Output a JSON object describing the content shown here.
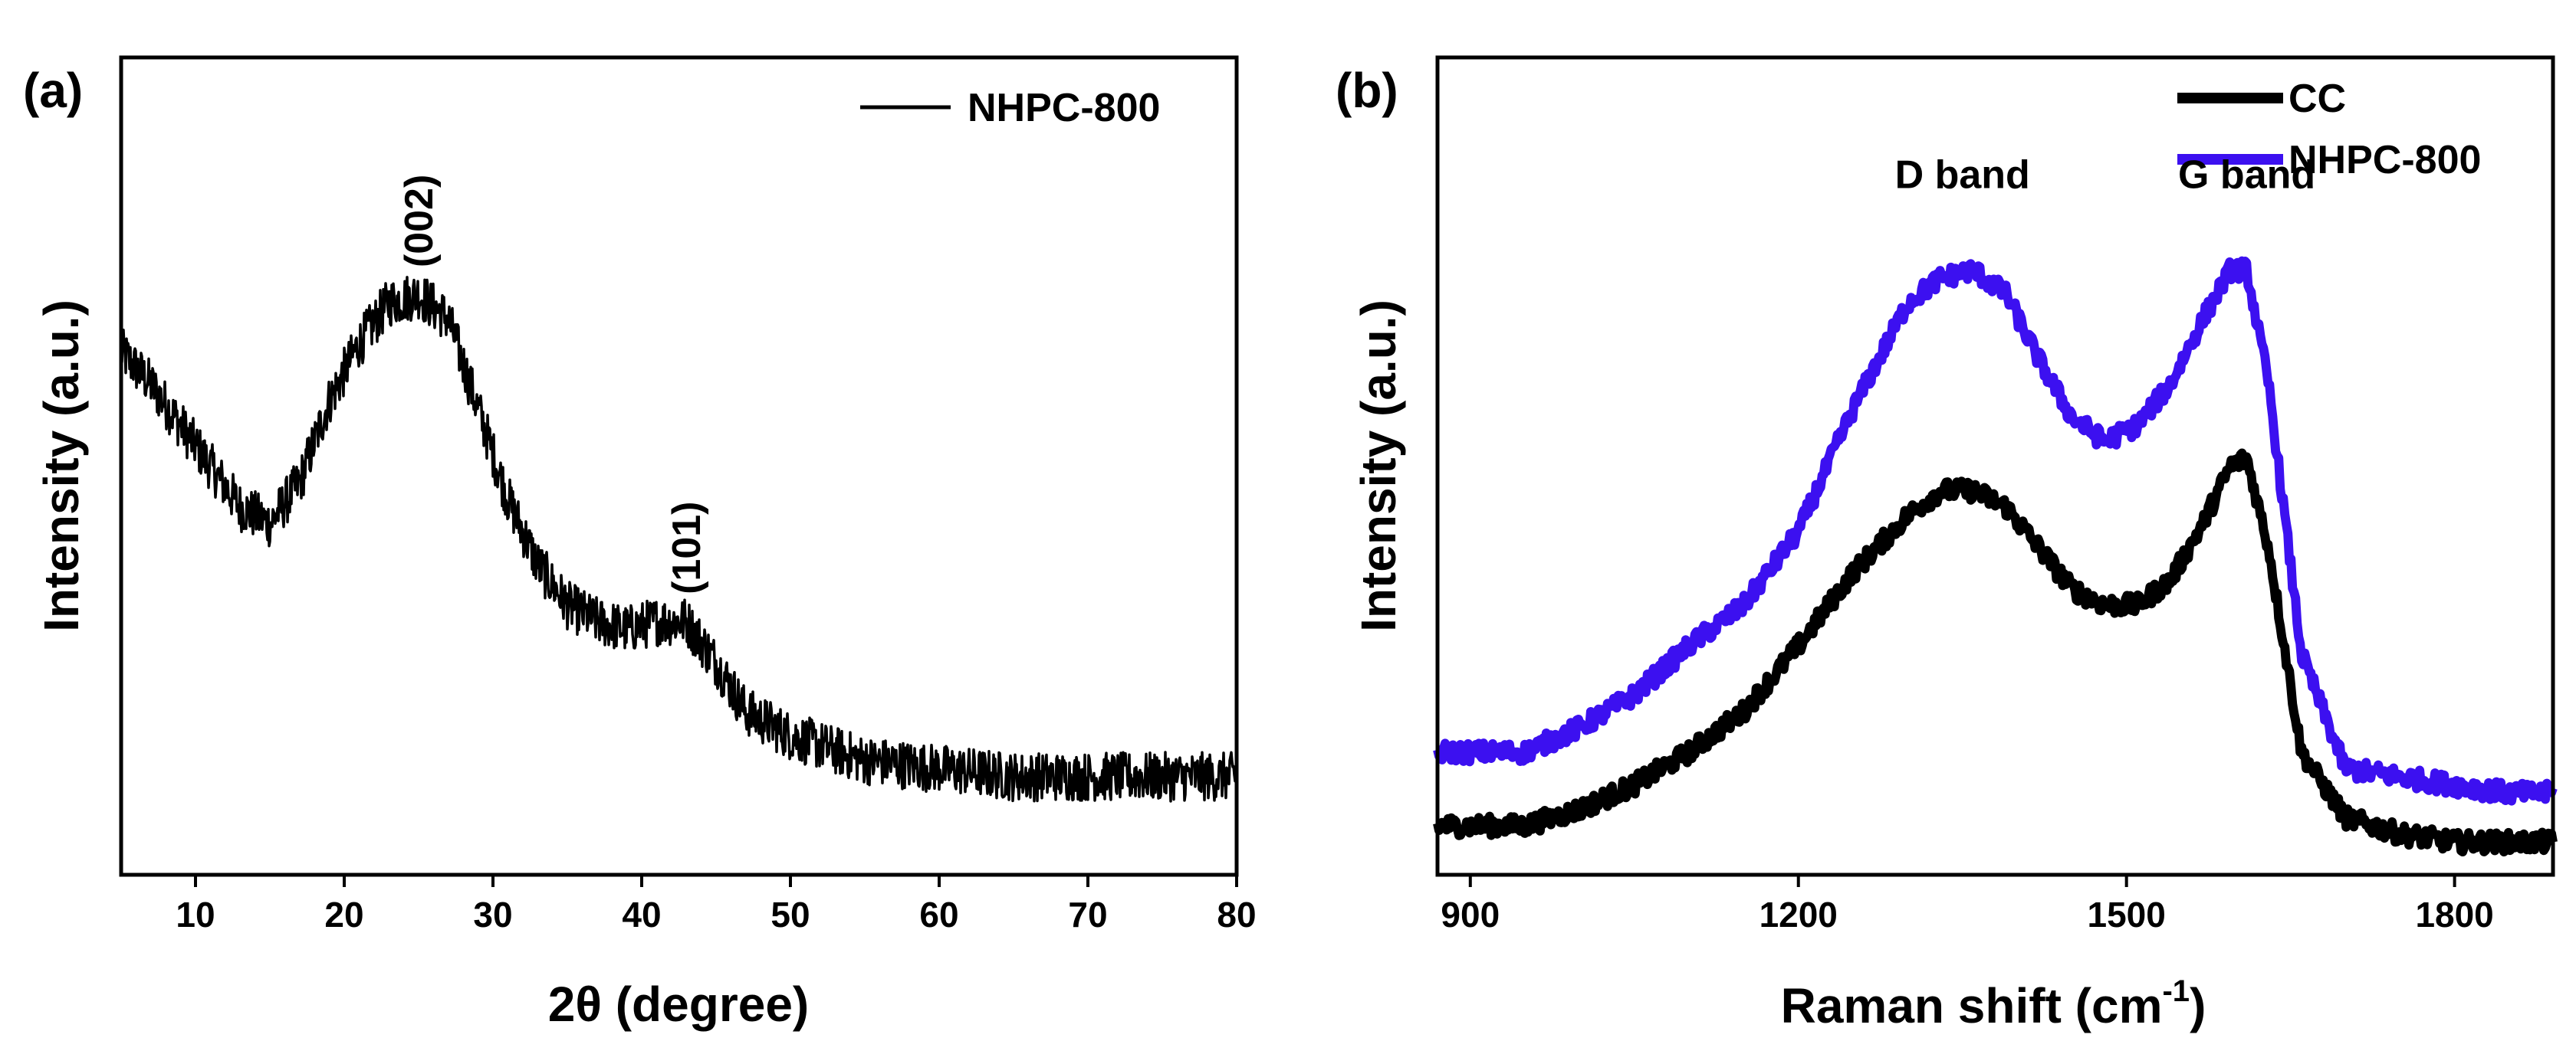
{
  "chart_data": [
    {
      "type": "line",
      "panel_label": "(a)",
      "xlabel": "2θ (degree)",
      "ylabel": "Intensity (a.u.)",
      "xlim": [
        5,
        80
      ],
      "ylim": [
        0,
        1
      ],
      "xticks": [
        10,
        20,
        30,
        40,
        50,
        60,
        70,
        80
      ],
      "tick_labels": [
        "10",
        "20",
        "30",
        "40",
        "50",
        "60",
        "70",
        "80"
      ],
      "legend_position": "top-right",
      "series": [
        {
          "name": "NHPC-800",
          "color": "#000000",
          "x": [
            5,
            7,
            9,
            11,
            13,
            15,
            17,
            19,
            21,
            23,
            25,
            27,
            29,
            31,
            33,
            35,
            37,
            39,
            41,
            43,
            45,
            47,
            50,
            55,
            60,
            65,
            70,
            75,
            80
          ],
          "y": [
            0.64,
            0.6,
            0.55,
            0.5,
            0.45,
            0.43,
            0.48,
            0.58,
            0.65,
            0.7,
            0.71,
            0.68,
            0.57,
            0.46,
            0.38,
            0.33,
            0.31,
            0.3,
            0.31,
            0.31,
            0.26,
            0.2,
            0.17,
            0.14,
            0.13,
            0.12,
            0.12,
            0.12,
            0.12
          ],
          "noise": 0.03
        }
      ],
      "annotations": [
        {
          "text": "(002)",
          "x": 25,
          "y": 0.8
        },
        {
          "text": "(101)",
          "x": 43,
          "y": 0.4
        }
      ]
    },
    {
      "type": "line",
      "panel_label": "(b)",
      "xlabel": "Raman shift (cm",
      "xlabel_sup": "-1",
      "xlabel_close": ")",
      "ylabel": "Intensity (a.u.)",
      "xlim": [
        870,
        1890
      ],
      "ylim": [
        0,
        1
      ],
      "xticks": [
        900,
        1200,
        1500,
        1800
      ],
      "tick_labels": [
        "900",
        "1200",
        "1500",
        "1800"
      ],
      "legend_position": "top-right",
      "series": [
        {
          "name": "CC",
          "color": "#000000",
          "x": [
            870,
            900,
            950,
            1000,
            1050,
            1100,
            1150,
            1200,
            1250,
            1300,
            1330,
            1360,
            1390,
            1420,
            1450,
            1480,
            1510,
            1540,
            1570,
            1595,
            1610,
            1630,
            1660,
            1700,
            1750,
            1800,
            1850,
            1890
          ],
          "y": [
            0.06,
            0.06,
            0.06,
            0.08,
            0.11,
            0.15,
            0.2,
            0.28,
            0.37,
            0.44,
            0.47,
            0.47,
            0.45,
            0.4,
            0.35,
            0.33,
            0.33,
            0.36,
            0.43,
            0.5,
            0.51,
            0.4,
            0.15,
            0.07,
            0.05,
            0.04,
            0.04,
            0.04
          ],
          "noise": 0.012
        },
        {
          "name": "NHPC-800",
          "color": "#3c10f0",
          "x": [
            870,
            900,
            950,
            1000,
            1050,
            1100,
            1150,
            1200,
            1250,
            1300,
            1330,
            1360,
            1390,
            1420,
            1450,
            1480,
            1510,
            1540,
            1570,
            1595,
            1610,
            1630,
            1660,
            1700,
            1750,
            1800,
            1850,
            1890
          ],
          "y": [
            0.15,
            0.15,
            0.15,
            0.18,
            0.22,
            0.28,
            0.33,
            0.42,
            0.57,
            0.7,
            0.73,
            0.74,
            0.71,
            0.63,
            0.56,
            0.53,
            0.55,
            0.6,
            0.68,
            0.74,
            0.74,
            0.6,
            0.27,
            0.13,
            0.12,
            0.11,
            0.1,
            0.1
          ],
          "noise": 0.012
        }
      ],
      "annotations": [
        {
          "text": "D band",
          "x": 1350,
          "y": 0.84
        },
        {
          "text": "G band",
          "x": 1610,
          "y": 0.84
        }
      ]
    }
  ]
}
